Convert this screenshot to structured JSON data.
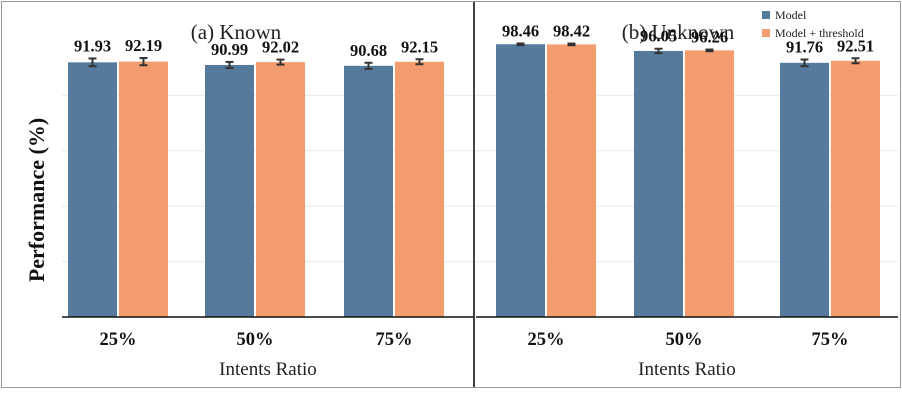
{
  "figure": {
    "ylabel": "Performance (%)",
    "xlabel": "Intents Ratio",
    "legend": {
      "position": "top-right",
      "entries": [
        "Model",
        "Model + threshold"
      ]
    }
  },
  "chart_data": [
    {
      "type": "bar",
      "title": "(a) Known",
      "xlabel": "Intents Ratio",
      "ylabel": "Performance (%)",
      "ylim": [
        0,
        100
      ],
      "grid": true,
      "categories": [
        "25%",
        "50%",
        "75%"
      ],
      "series": [
        {
          "name": "Model",
          "color": "#557a9c",
          "values": [
            91.93,
            90.99,
            90.68
          ],
          "errors": [
            1.4,
            1.1,
            1.1
          ]
        },
        {
          "name": "Model + threshold",
          "color": "#f39c6d",
          "values": [
            92.19,
            92.02,
            92.15
          ],
          "errors": [
            1.3,
            0.9,
            0.9
          ]
        }
      ],
      "data_labels": [
        [
          "91.93",
          "90.99",
          "90.68"
        ],
        [
          "92.19",
          "92.02",
          "92.15"
        ]
      ]
    },
    {
      "type": "bar",
      "title": "(b) Unknown",
      "xlabel": "Intents Ratio",
      "ylabel": "Performance (%)",
      "ylim": [
        0,
        100
      ],
      "grid": true,
      "legend": [
        "Model",
        "Model + threshold"
      ],
      "categories": [
        "25%",
        "50%",
        "75%"
      ],
      "series": [
        {
          "name": "Model",
          "color": "#557a9c",
          "values": [
            98.46,
            96.05,
            91.76
          ],
          "errors": [
            0.3,
            0.8,
            1.2
          ]
        },
        {
          "name": "Model + threshold",
          "color": "#f39c6d",
          "values": [
            98.42,
            96.26,
            92.51
          ],
          "errors": [
            0.3,
            0.3,
            0.9
          ]
        }
      ],
      "data_labels": [
        [
          "98.46",
          "96.05",
          "91.76"
        ],
        [
          "98.42",
          "96.26",
          "92.51"
        ]
      ]
    }
  ]
}
